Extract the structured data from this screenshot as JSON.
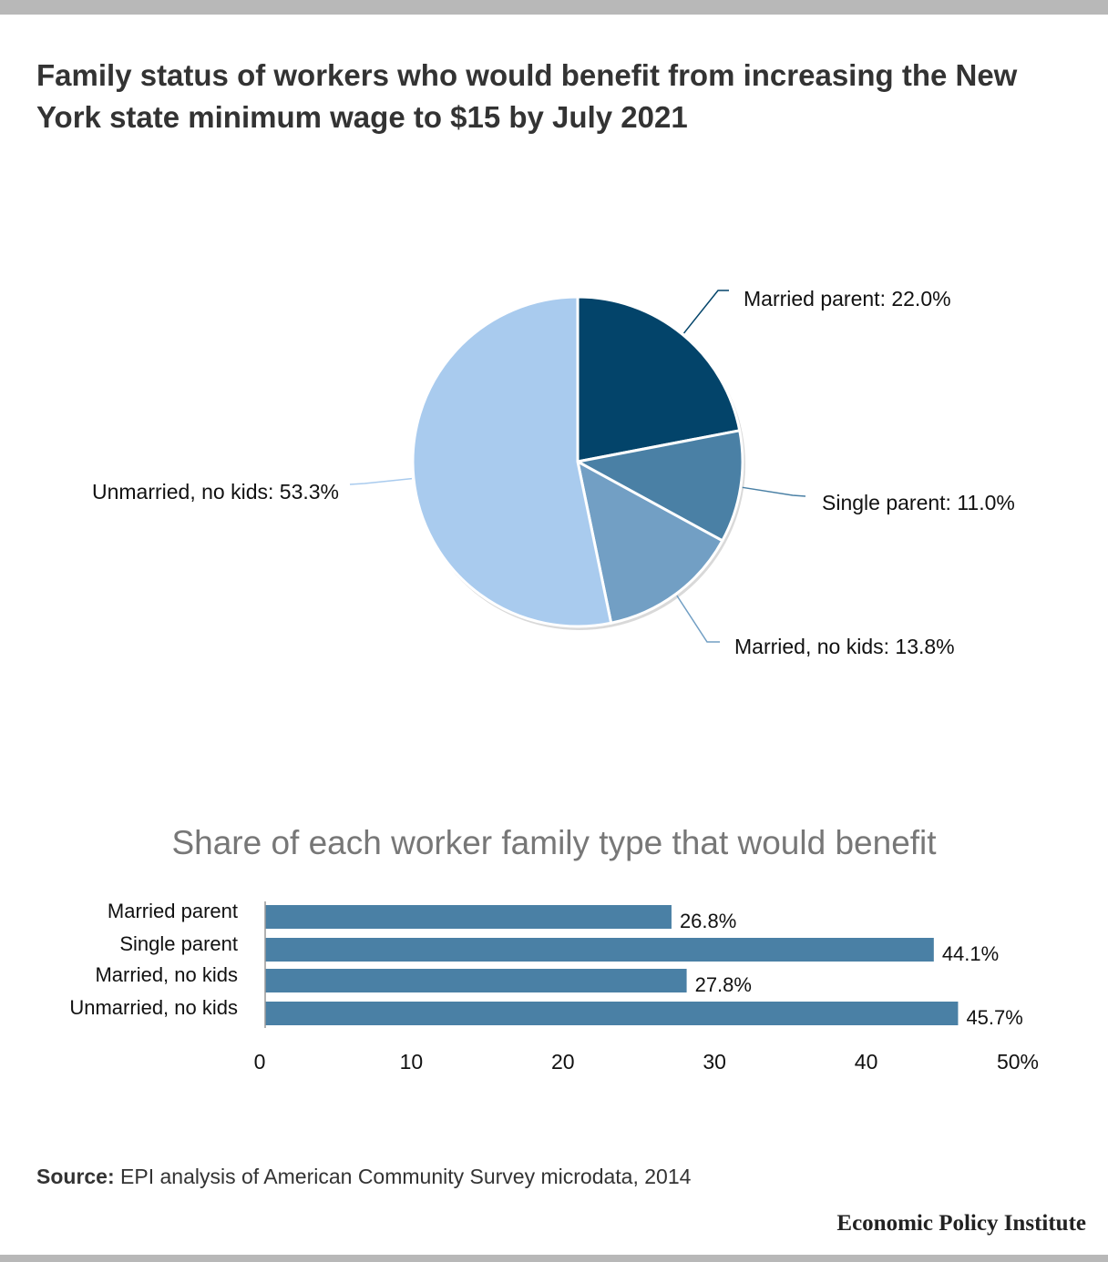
{
  "title": "Family status of workers who would benefit from increasing the New York state minimum wage to $15 by July 2021",
  "source": {
    "label": "Source:",
    "text": "EPI analysis of American Community Survey microdata, 2014"
  },
  "brand": "Economic Policy Institute",
  "colors": {
    "married_parent": "#03446a",
    "single_parent": "#4a80a5",
    "married_no_kids": "#729fc4",
    "unmarried_no_kids": "#a9cbee",
    "bar": "#4a80a5"
  },
  "chart_data": [
    {
      "type": "pie",
      "slices": [
        {
          "name": "Married parent",
          "value": 22.0,
          "label": "Married parent: 22.0%"
        },
        {
          "name": "Single parent",
          "value": 11.0,
          "label": "Single parent: 11.0%"
        },
        {
          "name": "Married, no kids",
          "value": 13.8,
          "label": "Married, no kids: 13.8%"
        },
        {
          "name": "Unmarried, no kids",
          "value": 53.3,
          "label": "Unmarried, no kids: 53.3%"
        }
      ]
    },
    {
      "type": "bar",
      "orientation": "horizontal",
      "title": "Share of each worker family type that would benefit",
      "categories": [
        "Married parent",
        "Single parent",
        "Married, no kids",
        "Unmarried, no kids"
      ],
      "values": [
        26.8,
        44.1,
        27.8,
        45.7
      ],
      "value_labels": [
        "26.8%",
        "44.1%",
        "27.8%",
        "45.7%"
      ],
      "xlim": [
        0,
        50
      ],
      "xticks": [
        "0",
        "10",
        "20",
        "30",
        "40",
        "50%"
      ],
      "grid": false
    }
  ]
}
